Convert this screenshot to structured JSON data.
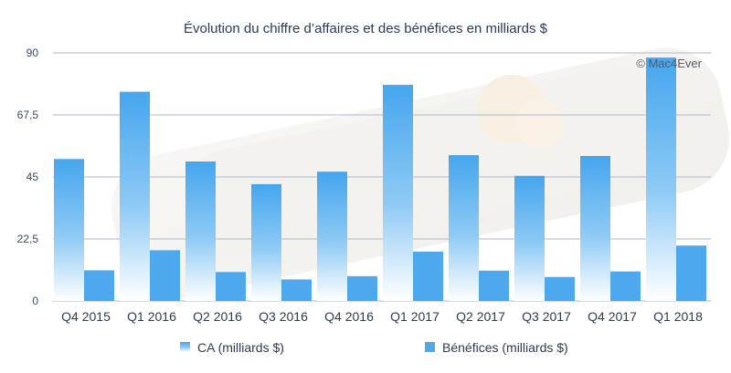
{
  "chart_data": {
    "type": "bar",
    "title": "Évolution du chiffre d’affaires et des bénéfices en milliards $",
    "watermark": "© Mac4Ever",
    "categories": [
      "Q4 2015",
      "Q1 2016",
      "Q2 2016",
      "Q3 2016",
      "Q4 2016",
      "Q1 2017",
      "Q2 2017",
      "Q3 2017",
      "Q4 2017",
      "Q1 2018"
    ],
    "series": [
      {
        "name": "CA (milliards $)",
        "values": [
          51.5,
          75.9,
          50.6,
          42.4,
          46.9,
          78.4,
          52.9,
          45.4,
          52.6,
          88.3
        ]
      },
      {
        "name": "Bénéfices (milliards $)",
        "values": [
          11.1,
          18.4,
          10.5,
          7.8,
          9.0,
          17.9,
          11.0,
          8.7,
          10.7,
          20.1
        ]
      }
    ],
    "yticks": [
      "0",
      "22,5",
      "45",
      "67,5",
      "90"
    ],
    "ylim": [
      0,
      90
    ],
    "grid": true,
    "legend_position": "bottom",
    "colors": {
      "ca_top": "#45a6ee",
      "ca_bottom": "#ffffff",
      "benefices": "#4ea8ee",
      "grid": "#aeb8cc"
    }
  }
}
